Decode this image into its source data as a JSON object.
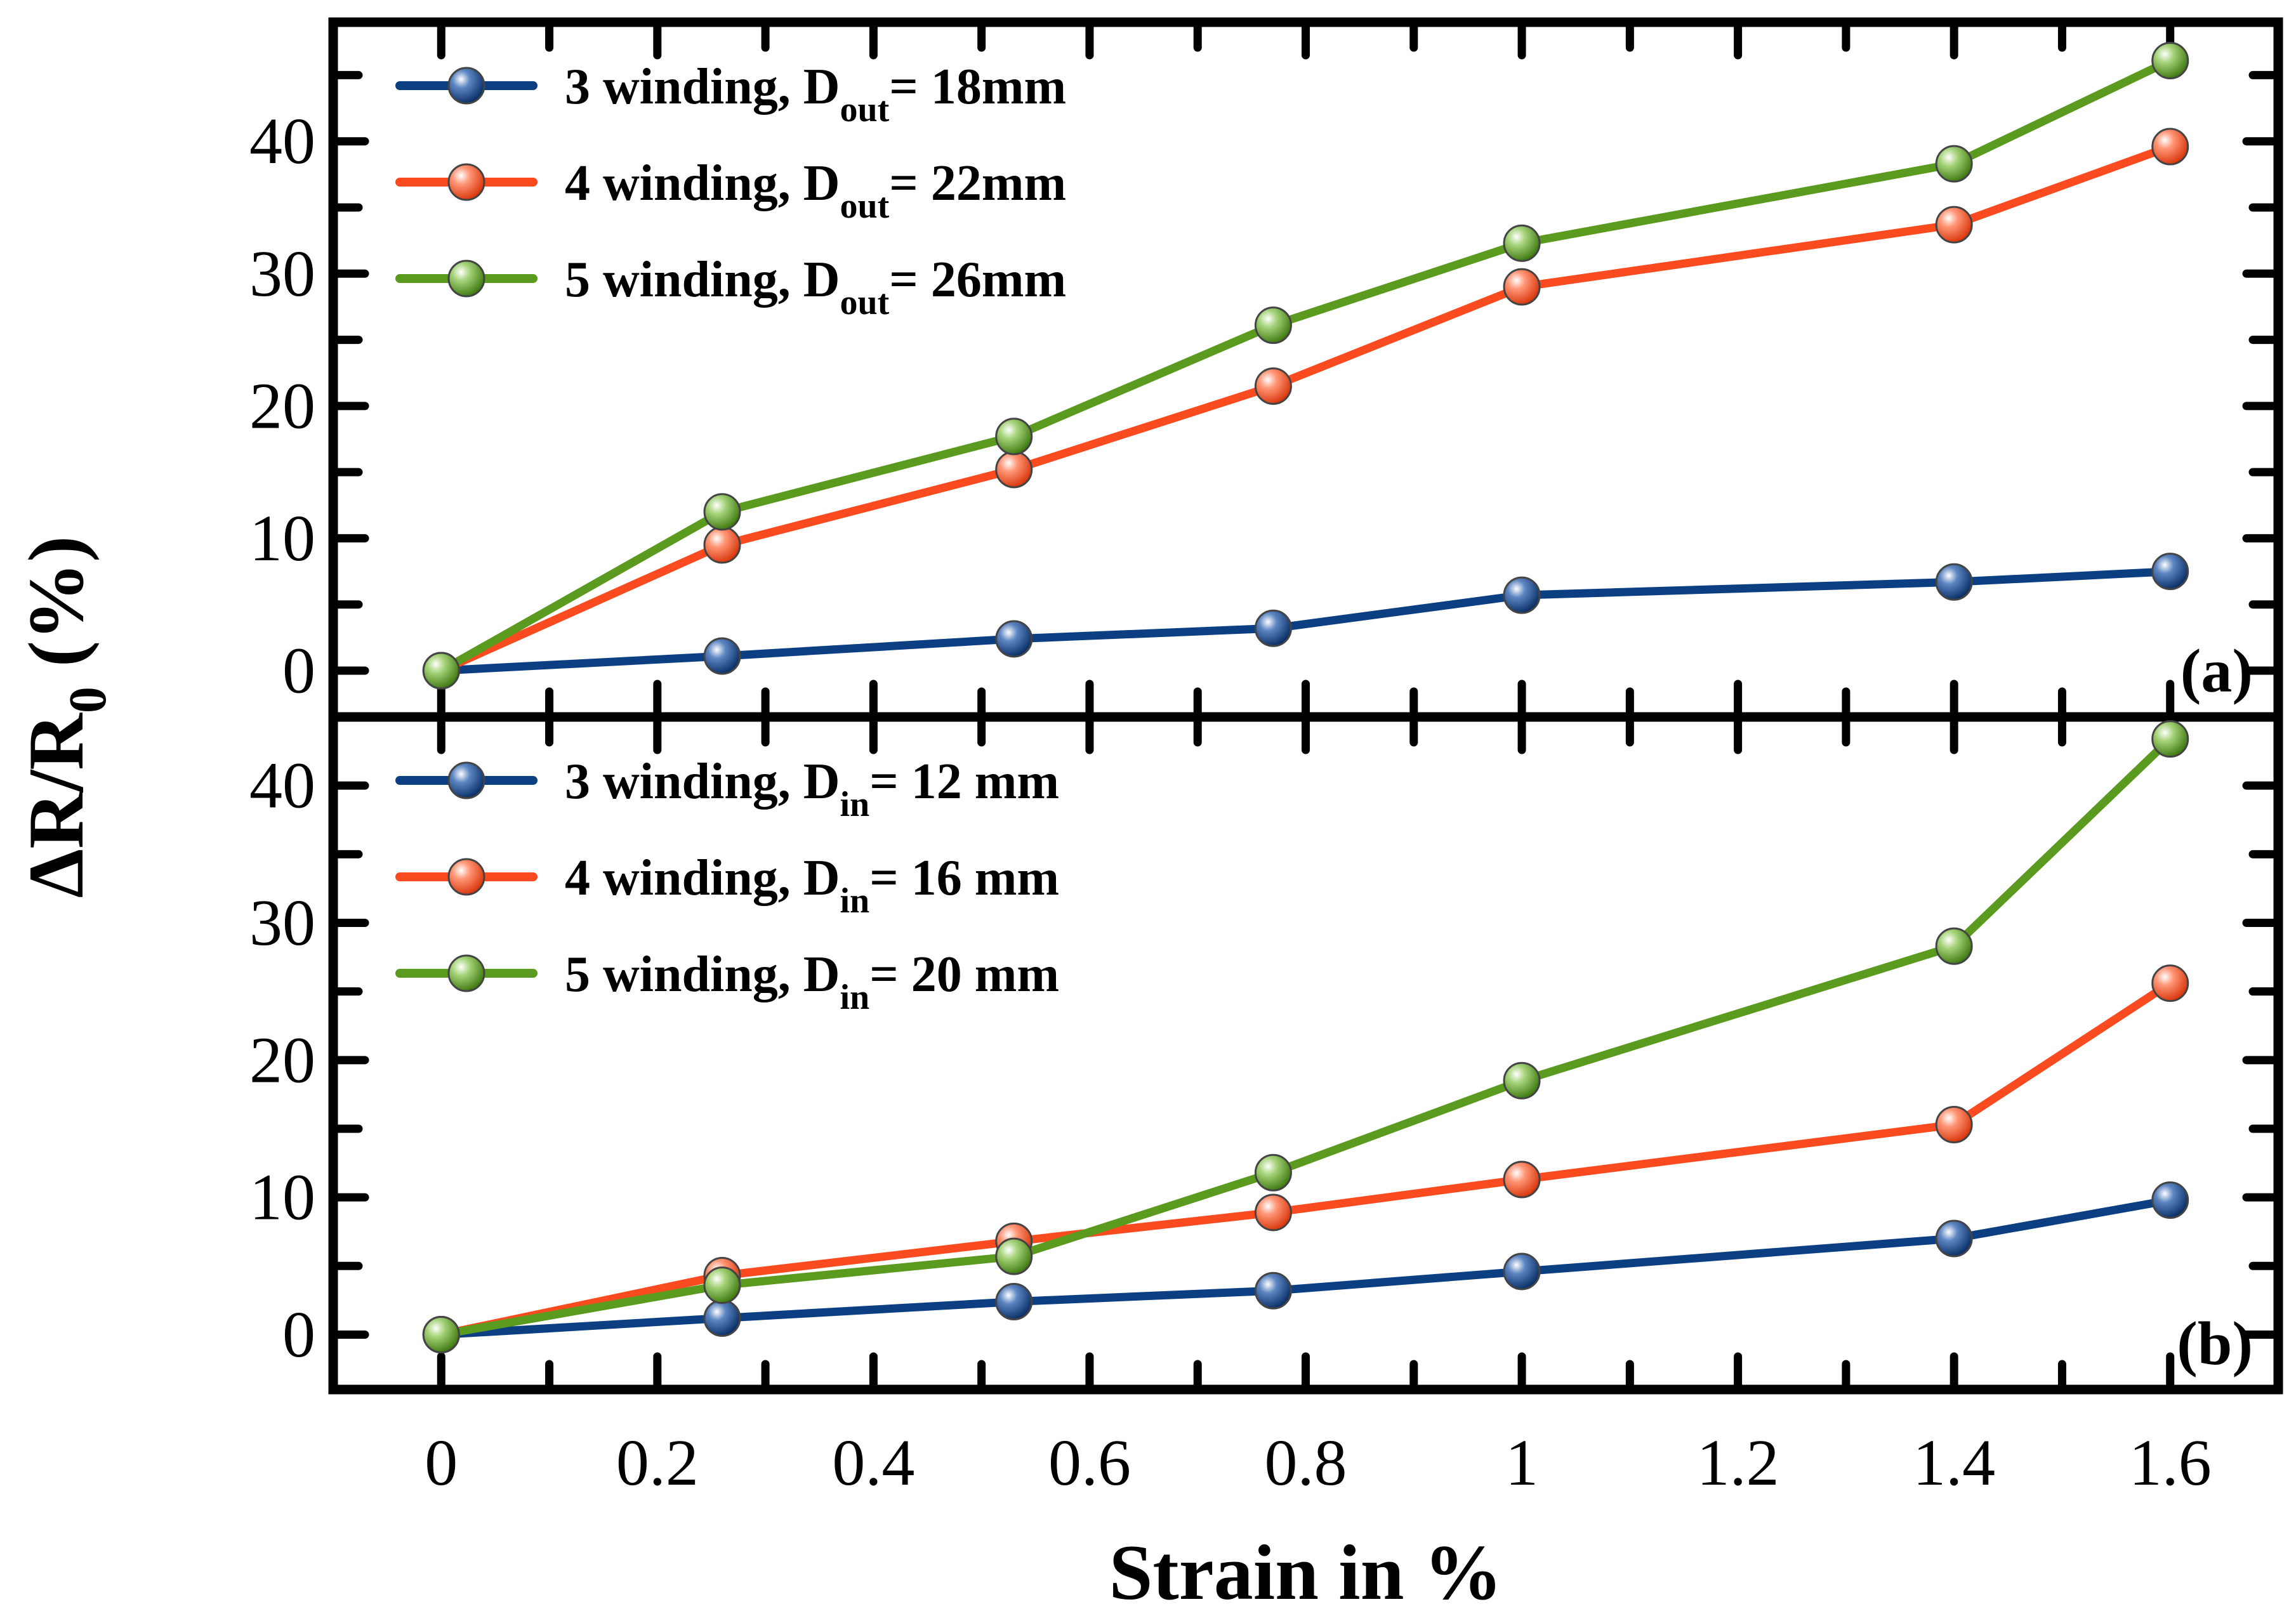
{
  "chart_data": {
    "type": "line",
    "xlabel": "Strain in %",
    "ylabel": {
      "main": "ΔR/R",
      "sub": "0",
      "unit": " (%)"
    },
    "xlim": [
      -0.1,
      1.7
    ],
    "x_ticks": [
      0,
      0.2,
      0.4,
      0.6,
      0.8,
      1,
      1.2,
      1.4,
      1.6
    ],
    "x_tick_labels": [
      "0",
      "0.2",
      "0.4",
      "0.6",
      "0.8",
      "1",
      "1.2",
      "1.4",
      "1.6"
    ],
    "grid": false,
    "panels": [
      {
        "tag": "(a)",
        "ylim": [
          -3.5,
          49
        ],
        "y_ticks": [
          0,
          10,
          20,
          30,
          40
        ],
        "y_tick_labels": [
          "0",
          "10",
          "20",
          "30",
          "40"
        ],
        "x": [
          0,
          0.26,
          0.53,
          0.77,
          1,
          1.4,
          1.6
        ],
        "legend_position": "top-left",
        "series": [
          {
            "name_pre": "3 winding, D",
            "name_sub": "out",
            "name_post": "= 18mm",
            "color": "#0c3f82",
            "values": [
              0,
              1.1,
              2.4,
              3.2,
              5.7,
              6.7,
              7.5
            ]
          },
          {
            "name_pre": "4 winding, D",
            "name_sub": "out",
            "name_post": "= 22mm",
            "color": "#f94b1f",
            "values": [
              0,
              9.5,
              15.2,
              21.5,
              29,
              33.7,
              39.6
            ]
          },
          {
            "name_pre": "5 winding, D",
            "name_sub": "out",
            "name_post": "= 26mm",
            "color": "#5a9a1e",
            "values": [
              0,
              12,
              17.7,
              26.1,
              32.3,
              38.3,
              46.1
            ]
          }
        ]
      },
      {
        "tag": "(b)",
        "ylim": [
          -4,
          45
        ],
        "y_ticks": [
          0,
          10,
          20,
          30,
          40
        ],
        "y_tick_labels": [
          "0",
          "10",
          "20",
          "30",
          "40"
        ],
        "x": [
          0,
          0.26,
          0.53,
          0.77,
          1,
          1.4,
          1.6
        ],
        "legend_position": "top-left",
        "series": [
          {
            "name_pre": "3 winding, D",
            "name_sub": "in",
            "name_post": "= 12 mm",
            "color": "#0c3f82",
            "values": [
              0,
              1.2,
              2.4,
              3.2,
              4.6,
              7,
              9.8
            ]
          },
          {
            "name_pre": "4 winding, D",
            "name_sub": "in",
            "name_post": "= 16 mm",
            "color": "#f94b1f",
            "values": [
              0,
              4.3,
              6.8,
              8.9,
              11.3,
              15.3,
              25.6
            ]
          },
          {
            "name_pre": "5 winding, D",
            "name_sub": "in",
            "name_post": "= 20 mm",
            "color": "#5a9a1e",
            "values": [
              0,
              3.6,
              5.7,
              11.8,
              18.5,
              28.3,
              43.4
            ]
          }
        ]
      }
    ]
  }
}
